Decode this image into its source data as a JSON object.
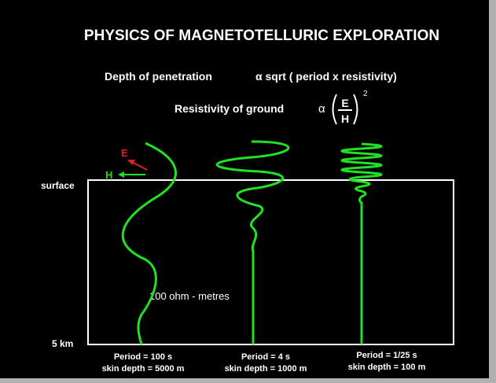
{
  "title": "PHYSICS OF MAGNETOTELLURIC EXPLORATION",
  "formulas": {
    "depth": {
      "label": "Depth of penetration",
      "relation": "α sqrt ( period x resistivity)"
    },
    "resistivity": {
      "label": "Resistivity of ground",
      "symbol": "α",
      "numerator": "E",
      "denominator": "H",
      "exponent": "2"
    }
  },
  "fields": {
    "e": "E",
    "h": "H"
  },
  "depth_labels": {
    "top": "surface",
    "bottom": "5 km"
  },
  "medium": "100 ohm - metres",
  "waves": [
    {
      "period": "Period = 100 s",
      "skin_depth": "skin depth = 5000  m"
    },
    {
      "period": "Period = 4 s",
      "skin_depth": "skin depth = 1000  m"
    },
    {
      "period": "Period = 1/25  s",
      "skin_depth": "skin depth = 100 m"
    }
  ]
}
